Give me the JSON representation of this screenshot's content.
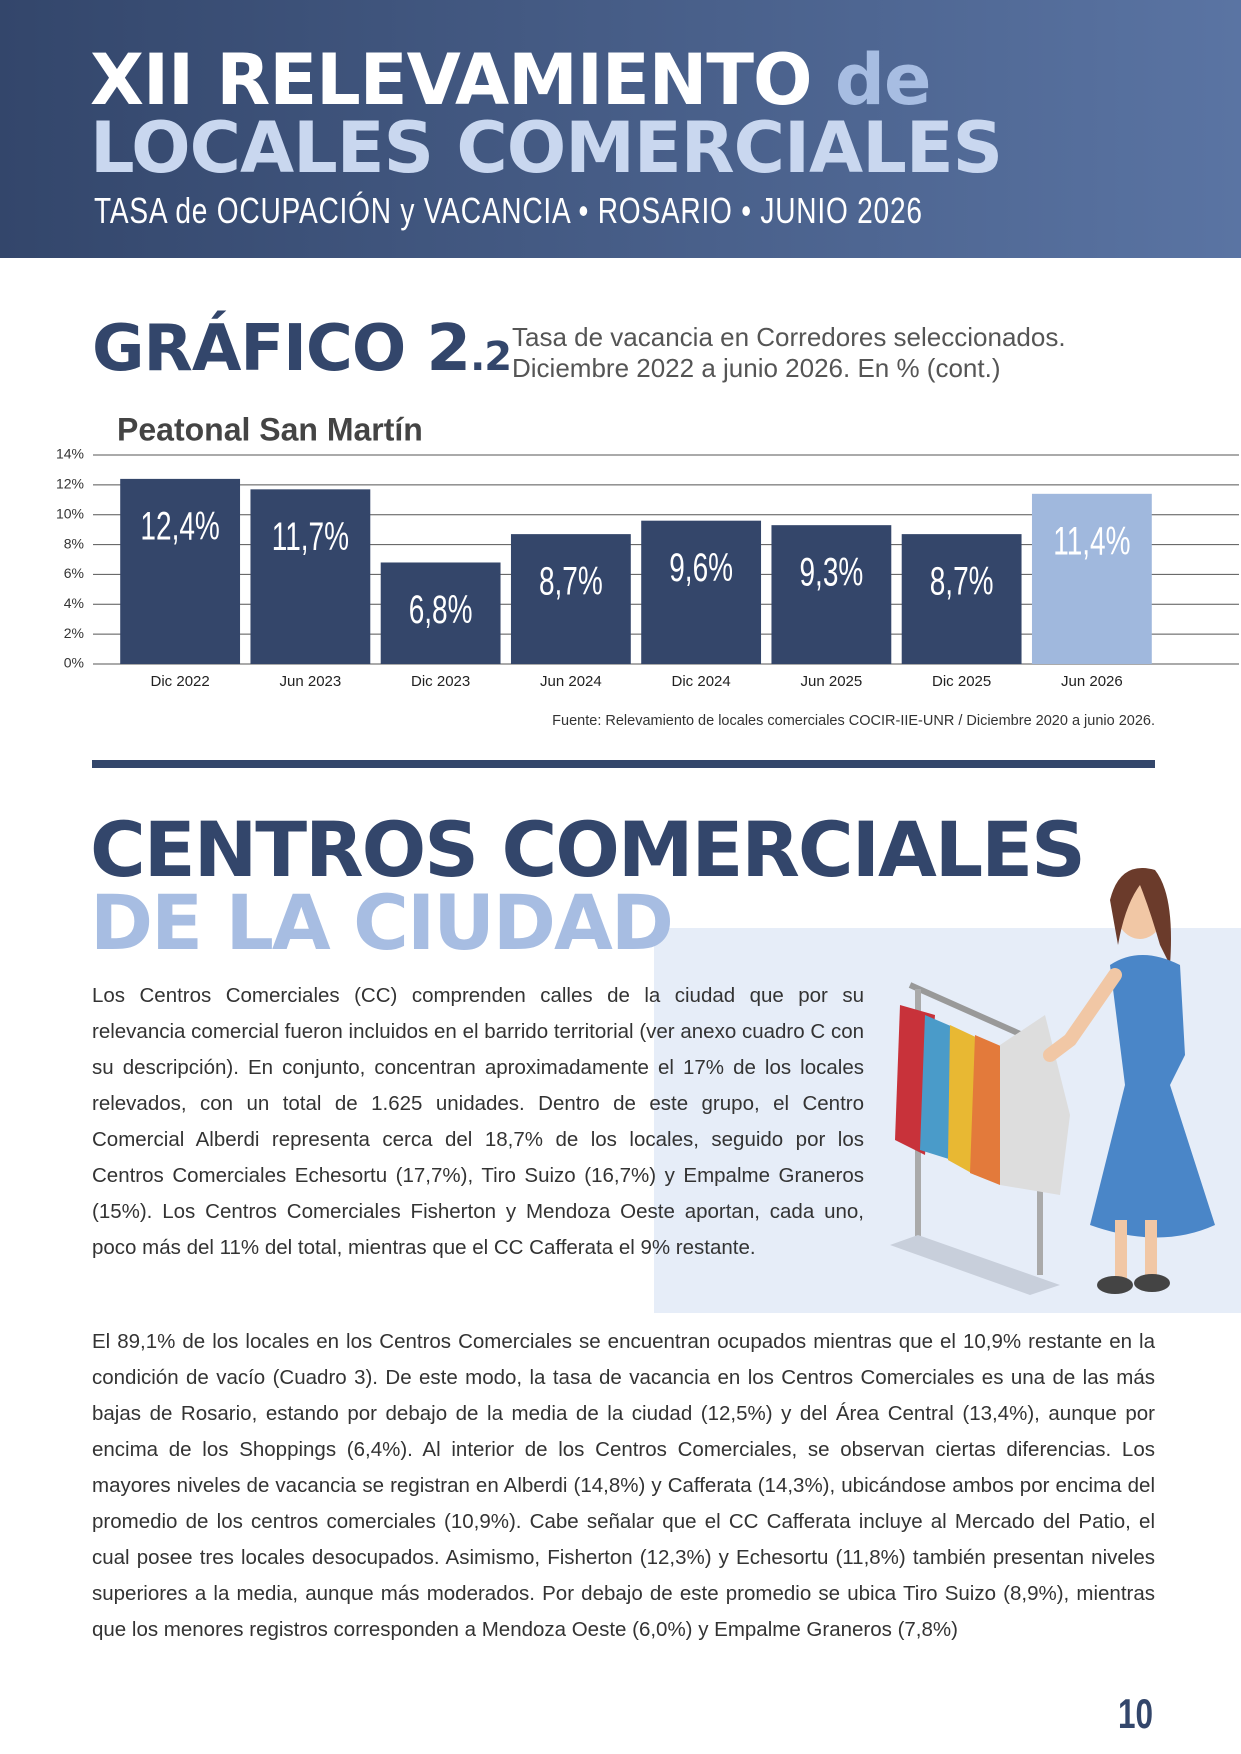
{
  "header": {
    "title_a": "XII RELEVAMIENTO",
    "title_b": "de",
    "title_line2": "LOCALES COMERCIALES",
    "subtitle": "TASA de OCUPACIÓN y VACANCIA • ROSARIO • JUNIO 2026"
  },
  "graph_heading": {
    "label": "GRÁFICO 2",
    "number": ".2",
    "caption_line1": "Tasa de vacancia en Corredores seleccionados.",
    "caption_line2": "Diciembre 2022 a junio 2026. En % (cont.)"
  },
  "chart_data": {
    "type": "bar",
    "title": "Peatonal San Martín",
    "categories": [
      "Dic 2022",
      "Jun 2023",
      "Dic 2023",
      "Jun 2024",
      "Dic 2024",
      "Jun 2025",
      "Dic 2025",
      "Jun 2026"
    ],
    "values": [
      12.4,
      11.7,
      6.8,
      8.7,
      9.6,
      9.3,
      8.7,
      11.4
    ],
    "value_labels": [
      "12,4%",
      "11,7%",
      "6,8%",
      "8,7%",
      "9,6%",
      "9,3%",
      "8,7%",
      "11,4%"
    ],
    "colors": [
      "#34466a",
      "#34466a",
      "#34466a",
      "#34466a",
      "#34466a",
      "#34466a",
      "#34466a",
      "#a0b8dd"
    ],
    "ylim": [
      0,
      14
    ],
    "yticks": [
      {
        "value": 0,
        "label": "0%"
      },
      {
        "value": 2,
        "label": "2%"
      },
      {
        "value": 4,
        "label": "4%"
      },
      {
        "value": 6,
        "label": "6%"
      },
      {
        "value": 8,
        "label": "8%"
      },
      {
        "value": 10,
        "label": "10%"
      },
      {
        "value": 12,
        "label": "12%"
      },
      {
        "value": 14,
        "label": "14%"
      }
    ],
    "grid": true,
    "source": "Fuente: Relevamiento de locales comerciales COCIR-IIE-UNR / Diciembre 2020 a junio 2026."
  },
  "section": {
    "title_line1": "CENTROS COMERCIALES",
    "title_line2": "DE LA CIUDAD",
    "paragraphs": [
      "Los Centros Comerciales (CC) comprenden calles de la ciudad que por su relevancia comercial fueron incluidos en el barrido territorial (ver anexo cuadro C con su descripción). En conjunto, concentran aproximadamente el 17% de los locales relevados, con un total de 1.625 unidades. Dentro de este grupo, el Centro Comercial Alberdi representa cerca del 18,7% de los locales, seguido por los Centros Comerciales Echesortu (17,7%), Tiro Suizo (16,7%) y Empalme Graneros (15%). Los Centros Comerciales Fisherton y Mendoza Oeste aportan, cada uno, poco más del 11% del total, mientras que el CC Cafferata el 9% restante.",
      "El 89,1% de los locales en los Centros Comerciales se encuentran ocupados mientras que el 10,9% restante en la condición de vacío (Cuadro 3). De este modo, la tasa de vacancia en los Centros Comerciales es una de las más bajas de Rosario, estando por debajo de la media de la ciudad (12,5%) y del Área Central (13,4%), aunque por encima de los Shoppings (6,4%). Al interior de los Centros Comerciales, se observan ciertas diferencias. Los mayores niveles de vacancia se registran en Alberdi (14,8%) y Cafferata (14,3%), ubicándose ambos por encima del promedio de los centros comerciales (10,9%). Cabe señalar que el CC Cafferata incluye al Mercado del Patio, el cual posee tres locales desocupados. Asimismo, Fisherton (12,3%) y Echesortu (11,8%) también presentan niveles superiores a la media, aunque más moderados. Por debajo de este promedio se ubica Tiro Suizo (8,9%), mientras que los menores registros corresponden a Mendoza Oeste (6,0%) y Empalme Graneros (7,8%)"
    ]
  },
  "page_number": "10"
}
